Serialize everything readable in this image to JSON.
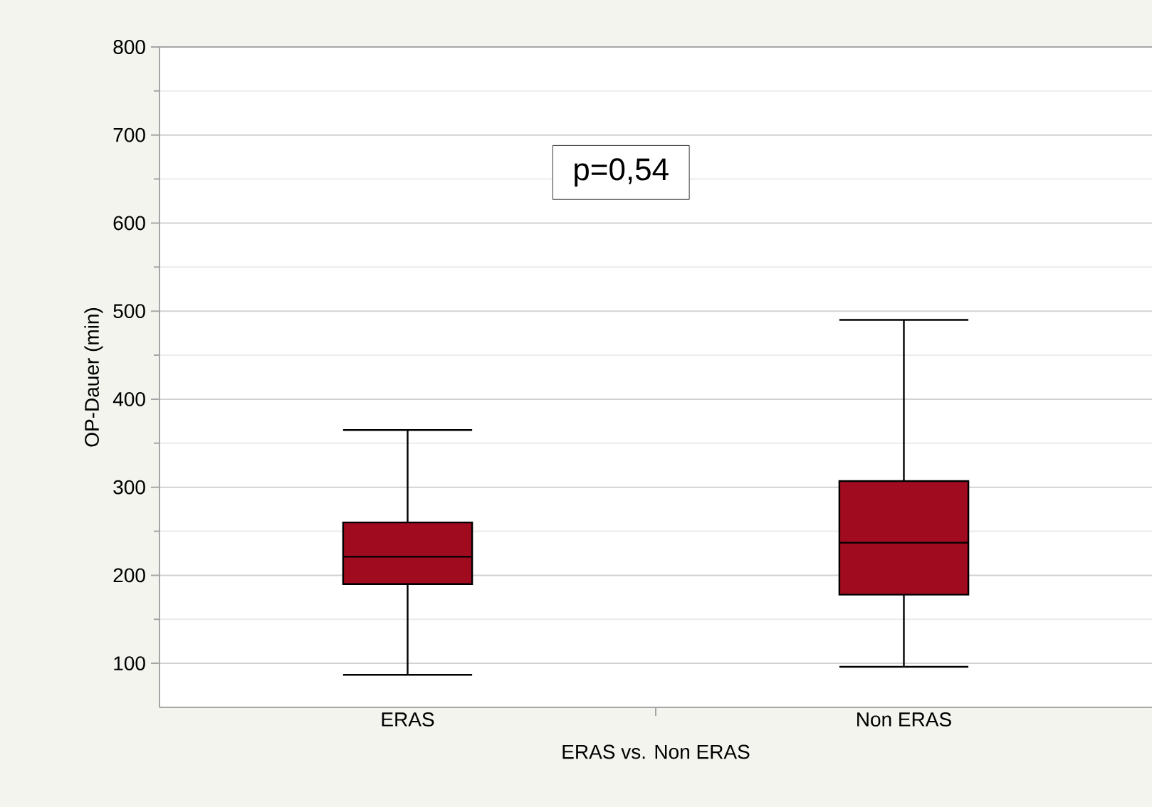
{
  "chart_data": {
    "type": "box",
    "xlabel": "ERAS vs. Non ERAS",
    "ylabel": "OP-Dauer (min)",
    "categories": [
      "ERAS",
      "Non ERAS"
    ],
    "boxes": [
      {
        "low": 87,
        "q1": 190,
        "median": 221,
        "q3": 260,
        "high": 365
      },
      {
        "low": 96,
        "q1": 178,
        "median": 237,
        "q3": 307,
        "high": 490
      }
    ],
    "color": "#a00b20",
    "ylim": [
      50,
      800
    ],
    "yticks": [
      100,
      200,
      300,
      400,
      500,
      600,
      700,
      800
    ],
    "grid": "y",
    "annotations": [
      "p=0,54"
    ]
  }
}
